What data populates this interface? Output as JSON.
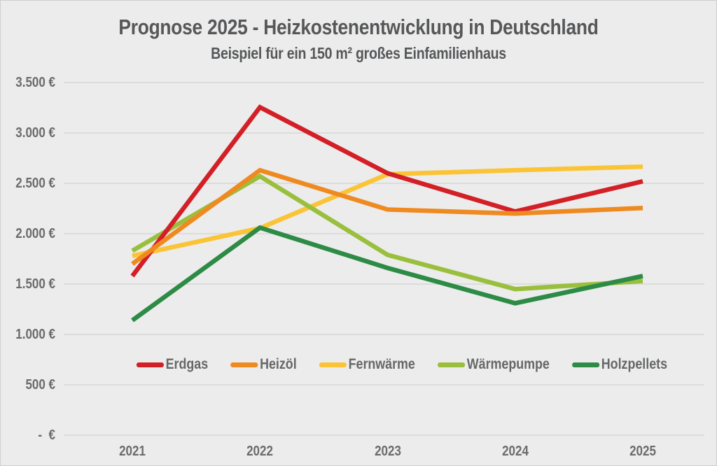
{
  "chart_data": {
    "type": "line",
    "title": "Prognose 2025 - Heizkostenentwicklung in Deutschland",
    "subtitle": "Beispiel für ein 150 m² großes Einfamilienhaus",
    "x": [
      "2021",
      "2022",
      "2023",
      "2024",
      "2025"
    ],
    "unit": "€",
    "ylim": [
      0,
      3500
    ],
    "ytick_step": 500,
    "grid": "horizontal",
    "legend_position": "inside-bottom-center",
    "yticks": [
      {
        "label": "3.500 €",
        "value": 3500
      },
      {
        "label": "3.000 €",
        "value": 3000
      },
      {
        "label": "2.500 €",
        "value": 2500
      },
      {
        "label": "2.000 €",
        "value": 2000
      },
      {
        "label": "1.500 €",
        "value": 1500
      },
      {
        "label": "1.000 €",
        "value": 1000
      },
      {
        "label": "500 €",
        "value": 500
      },
      {
        "label": "-  €",
        "value": 0
      }
    ],
    "series": [
      {
        "name": "Erdgas",
        "color": "#d32027",
        "values": [
          1580,
          3255,
          2600,
          2220,
          2520
        ]
      },
      {
        "name": "Heizöl",
        "color": "#ef8a21",
        "values": [
          1700,
          2630,
          2240,
          2200,
          2255
        ]
      },
      {
        "name": "Fernwärme",
        "color": "#fbc437",
        "values": [
          1780,
          2055,
          2590,
          2630,
          2665
        ]
      },
      {
        "name": "Wärmepumpe",
        "color": "#9abf3d",
        "values": [
          1830,
          2570,
          1790,
          1450,
          1530
        ]
      },
      {
        "name": "Holzpellets",
        "color": "#2d8b46",
        "values": [
          1140,
          2060,
          1660,
          1310,
          1580
        ]
      }
    ]
  },
  "colors": {
    "background": "#ececec",
    "grid": "#d6d6d6",
    "title_text": "#565759",
    "axis_text": "#6a6b6d"
  }
}
